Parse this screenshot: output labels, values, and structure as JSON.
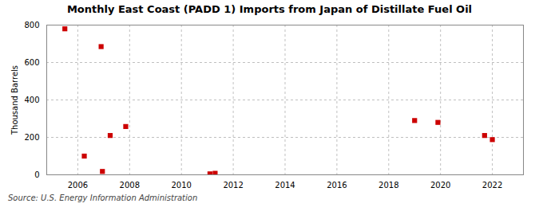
{
  "chart_data": {
    "type": "scatter",
    "title": "Monthly East Coast (PADD 1) Imports from Japan of Distillate Fuel Oil",
    "ylabel": "Thousand Barrels",
    "source": "Source: U.S. Energy Information Administration",
    "x": [
      2005.5,
      2006.25,
      2006.9,
      2006.95,
      2007.25,
      2007.85,
      2011.1,
      2011.3,
      2019.0,
      2019.9,
      2021.7,
      2022.0
    ],
    "values": [
      780,
      100,
      685,
      18,
      210,
      258,
      5,
      8,
      290,
      280,
      210,
      188
    ],
    "color": "#cc0000",
    "marker": "square",
    "xlim": [
      2004.8,
      2023.2
    ],
    "ylim": [
      0,
      800
    ],
    "xticks": [
      2006,
      2008,
      2010,
      2012,
      2014,
      2016,
      2018,
      2020,
      2022
    ],
    "yticks": [
      0,
      200,
      400,
      600,
      800
    ],
    "grid": true
  }
}
